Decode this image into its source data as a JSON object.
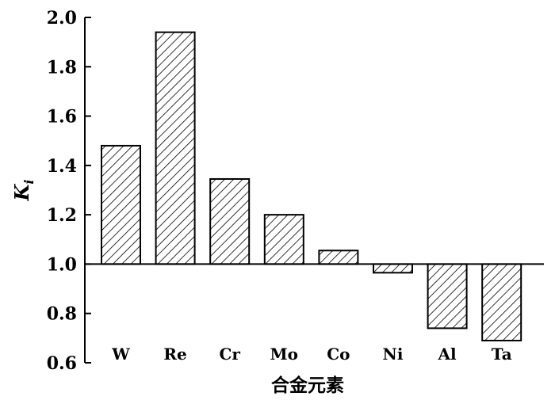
{
  "chart_data": {
    "type": "bar",
    "categories": [
      "W",
      "Re",
      "Cr",
      "Mo",
      "Co",
      "Ni",
      "Al",
      "Ta"
    ],
    "values": [
      1.48,
      1.94,
      1.345,
      1.2,
      1.055,
      0.965,
      0.74,
      0.69
    ],
    "baseline": 1.0,
    "ylim": [
      0.6,
      2.0
    ],
    "yticks": [
      0.6,
      0.8,
      1.0,
      1.2,
      1.4,
      1.6,
      1.8,
      2.0
    ],
    "ytick_labels": [
      "0.6",
      "0.8",
      "1.0",
      "1.2",
      "1.4",
      "1.6",
      "1.8",
      "2.0"
    ],
    "xlabel": "合金元素",
    "ylabel_main": "K",
    "ylabel_sub": "i",
    "bar_fill": "hatched",
    "grid": false
  }
}
